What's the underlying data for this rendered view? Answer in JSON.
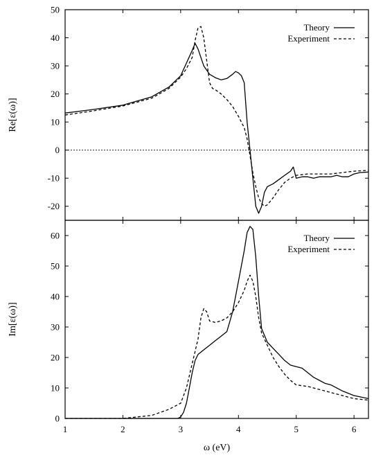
{
  "chart_data": [
    {
      "type": "line",
      "panel": "top",
      "title": "",
      "xlabel": "",
      "ylabel": "Re[ε(ω)]",
      "xlim": [
        1,
        6.25
      ],
      "ylim": [
        -25,
        50
      ],
      "yticks": [
        -20,
        -10,
        0,
        10,
        20,
        30,
        40,
        50
      ],
      "xticks": [
        1,
        2,
        3,
        4,
        5,
        6
      ],
      "grid": false,
      "legend_position": "top-right",
      "zero_line": true,
      "series": [
        {
          "name": "Theory",
          "style": "solid",
          "x": [
            1.0,
            1.5,
            2.0,
            2.5,
            2.8,
            3.0,
            3.1,
            3.2,
            3.25,
            3.3,
            3.4,
            3.5,
            3.6,
            3.7,
            3.8,
            3.9,
            3.95,
            4.0,
            4.05,
            4.1,
            4.15,
            4.2,
            4.25,
            4.3,
            4.35,
            4.4,
            4.45,
            4.5,
            4.6,
            4.7,
            4.8,
            4.9,
            4.95,
            5.0,
            5.1,
            5.2,
            5.3,
            5.4,
            5.5,
            5.6,
            5.7,
            5.8,
            5.9,
            6.0,
            6.1,
            6.25
          ],
          "y": [
            13.2,
            14.5,
            16.0,
            19.0,
            22.5,
            26.5,
            31.0,
            35.5,
            38.0,
            36.0,
            30.0,
            27.0,
            25.8,
            25.0,
            25.5,
            27.0,
            28.0,
            27.5,
            26.5,
            24.0,
            10.0,
            0.0,
            -10.0,
            -20.0,
            -22.5,
            -20.0,
            -15.0,
            -13.0,
            -12.0,
            -10.5,
            -9.0,
            -7.5,
            -6.0,
            -10.0,
            -9.5,
            -9.5,
            -10.0,
            -9.5,
            -9.5,
            -9.5,
            -9.0,
            -9.5,
            -9.5,
            -8.5,
            -8.0,
            -7.8
          ]
        },
        {
          "name": "Experiment",
          "style": "dashed",
          "x": [
            1.0,
            1.5,
            2.0,
            2.5,
            2.8,
            3.0,
            3.1,
            3.2,
            3.25,
            3.3,
            3.35,
            3.4,
            3.45,
            3.5,
            3.55,
            3.6,
            3.7,
            3.8,
            3.9,
            4.0,
            4.1,
            4.15,
            4.2,
            4.25,
            4.3,
            4.35,
            4.4,
            4.45,
            4.5,
            4.6,
            4.7,
            4.8,
            4.9,
            5.0,
            5.2,
            5.4,
            5.6,
            5.8,
            6.0,
            6.25
          ],
          "y": [
            12.5,
            14.0,
            15.7,
            18.5,
            22.0,
            26.0,
            29.0,
            33.0,
            39.0,
            43.5,
            44.0,
            40.0,
            32.0,
            24.0,
            22.0,
            21.5,
            20.0,
            18.0,
            15.5,
            12.0,
            8.0,
            4.0,
            -2.0,
            -8.0,
            -13.0,
            -17.0,
            -19.0,
            -20.0,
            -19.5,
            -17.0,
            -14.0,
            -11.5,
            -10.0,
            -9.0,
            -8.5,
            -8.5,
            -8.5,
            -8.0,
            -7.5,
            -7.2
          ]
        }
      ]
    },
    {
      "type": "line",
      "panel": "bottom",
      "title": "",
      "xlabel": "ω (eV)",
      "ylabel": "Im[ε(ω)]",
      "xlim": [
        1,
        6.25
      ],
      "ylim": [
        0,
        65
      ],
      "yticks": [
        0,
        10,
        20,
        30,
        40,
        50,
        60
      ],
      "xticks": [
        1,
        2,
        3,
        4,
        5,
        6
      ],
      "grid": false,
      "legend_position": "top-right",
      "series": [
        {
          "name": "Theory",
          "style": "solid",
          "x": [
            1.0,
            2.0,
            2.8,
            2.95,
            3.0,
            3.05,
            3.1,
            3.15,
            3.2,
            3.25,
            3.3,
            3.4,
            3.5,
            3.6,
            3.7,
            3.8,
            3.9,
            4.0,
            4.1,
            4.15,
            4.2,
            4.25,
            4.3,
            4.35,
            4.4,
            4.5,
            4.6,
            4.7,
            4.8,
            4.9,
            5.0,
            5.1,
            5.2,
            5.3,
            5.4,
            5.5,
            5.6,
            5.8,
            6.0,
            6.25
          ],
          "y": [
            0.0,
            0.0,
            0.0,
            0.0,
            0.5,
            2.0,
            5.0,
            10.0,
            15.0,
            19.0,
            21.0,
            22.5,
            24.0,
            25.5,
            27.0,
            28.5,
            35.0,
            45.0,
            55.0,
            61.0,
            63.0,
            62.0,
            53.0,
            40.0,
            29.5,
            25.0,
            23.0,
            21.0,
            19.0,
            17.5,
            17.0,
            16.5,
            15.0,
            13.5,
            12.5,
            11.5,
            11.0,
            9.0,
            7.5,
            6.5
          ]
        },
        {
          "name": "Experiment",
          "style": "dashed",
          "x": [
            1.0,
            1.5,
            2.0,
            2.5,
            2.8,
            3.0,
            3.1,
            3.2,
            3.3,
            3.35,
            3.4,
            3.45,
            3.5,
            3.6,
            3.7,
            3.8,
            3.9,
            4.0,
            4.1,
            4.15,
            4.2,
            4.25,
            4.3,
            4.35,
            4.4,
            4.5,
            4.6,
            4.7,
            4.8,
            4.9,
            5.0,
            5.2,
            5.4,
            5.6,
            5.8,
            6.0,
            6.25
          ],
          "y": [
            0.0,
            0.0,
            0.0,
            1.0,
            3.0,
            5.0,
            10.0,
            18.0,
            26.0,
            33.0,
            36.0,
            35.0,
            32.0,
            31.5,
            32.0,
            33.0,
            35.0,
            38.0,
            42.0,
            45.0,
            47.0,
            45.0,
            40.0,
            33.0,
            28.0,
            24.0,
            20.0,
            17.0,
            14.5,
            12.5,
            11.0,
            10.5,
            9.5,
            8.5,
            7.5,
            6.5,
            6.0
          ]
        }
      ]
    }
  ]
}
